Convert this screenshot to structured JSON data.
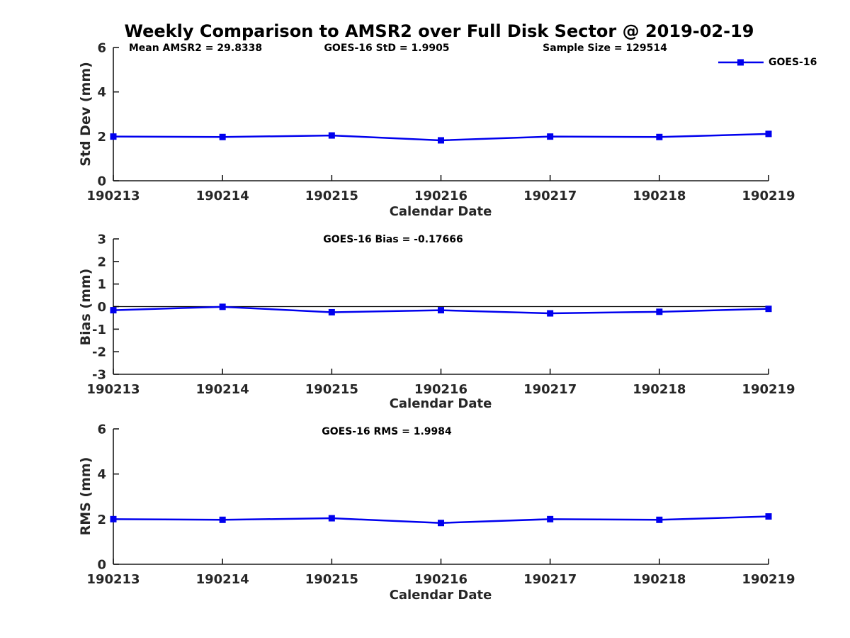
{
  "title": "Weekly Comparison to AMSR2 over Full Disk Sector @ 2019-02-19",
  "colors": {
    "line": "#0000EE",
    "axis": "#1a1a1a",
    "zero_line": "#000000",
    "background": "#ffffff"
  },
  "chart_data": [
    {
      "type": "line",
      "title": "",
      "annotations": [
        "Mean AMSR2 = 29.8338",
        "GOES-16 StD = 1.9905",
        "Sample Size = 129514"
      ],
      "xlabel": "Calendar Date",
      "ylabel": "Std Dev (mm)",
      "categories": [
        "190213",
        "190214",
        "190215",
        "190216",
        "190217",
        "190218",
        "190219"
      ],
      "series": [
        {
          "name": "GOES-16",
          "values": [
            1.99,
            1.97,
            2.04,
            1.82,
            1.99,
            1.97,
            2.11
          ]
        }
      ],
      "ylim": [
        0,
        6
      ],
      "yticks": [
        0,
        2,
        4,
        6
      ],
      "zero_line": false,
      "grid": false,
      "legend_position": "top-right"
    },
    {
      "type": "line",
      "title": "GOES-16 Bias  = -0.17666",
      "xlabel": "Calendar Date",
      "ylabel": "Bias (mm)",
      "categories": [
        "190213",
        "190214",
        "190215",
        "190216",
        "190217",
        "190218",
        "190219"
      ],
      "series": [
        {
          "name": "GOES-16",
          "values": [
            -0.16,
            -0.01,
            -0.25,
            -0.16,
            -0.3,
            -0.23,
            -0.1
          ]
        }
      ],
      "ylim": [
        -3,
        3
      ],
      "yticks": [
        -3,
        -2,
        -1,
        0,
        1,
        2,
        3
      ],
      "zero_line": true,
      "grid": false,
      "legend_position": "none"
    },
    {
      "type": "line",
      "title": "GOES-16 RMS = 1.9984",
      "xlabel": "Calendar Date",
      "ylabel": "RMS (mm)",
      "categories": [
        "190213",
        "190214",
        "190215",
        "190216",
        "190217",
        "190218",
        "190219"
      ],
      "series": [
        {
          "name": "GOES-16",
          "values": [
            2.0,
            1.97,
            2.04,
            1.83,
            2.0,
            1.97,
            2.12
          ]
        }
      ],
      "ylim": [
        0,
        6
      ],
      "yticks": [
        0,
        2,
        4,
        6
      ],
      "zero_line": false,
      "grid": false,
      "legend_position": "none"
    }
  ]
}
